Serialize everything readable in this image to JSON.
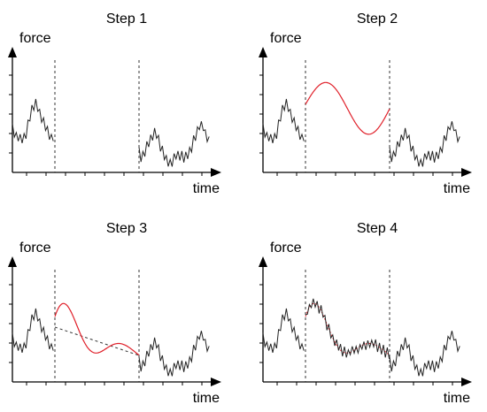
{
  "panels": [
    {
      "title": "Step 1",
      "y_label": "force",
      "x_label": "time"
    },
    {
      "title": "Step 2",
      "y_label": "force",
      "x_label": "time"
    },
    {
      "title": "Step 3",
      "y_label": "force",
      "x_label": "time"
    },
    {
      "title": "Step 4",
      "y_label": "force",
      "x_label": "time"
    }
  ],
  "colors": {
    "signal": "#222222",
    "replacement": "#e0202a",
    "axis": "#000000",
    "divider": "#333333"
  }
}
